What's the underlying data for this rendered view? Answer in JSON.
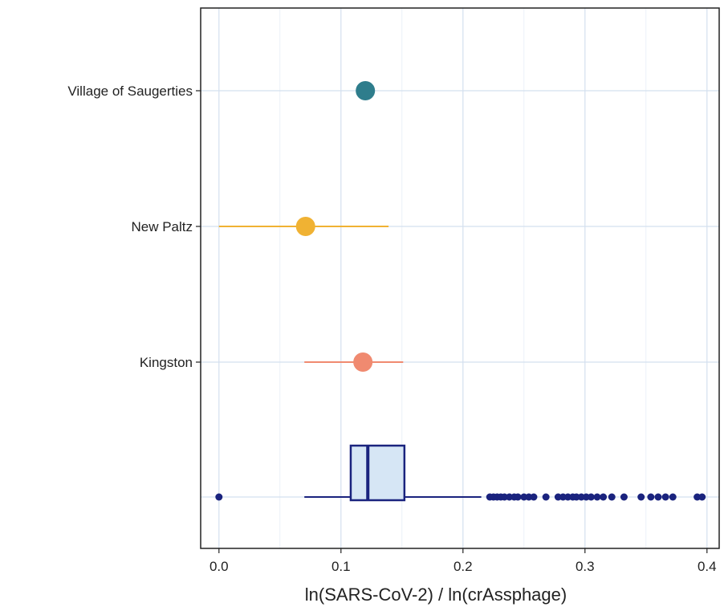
{
  "chart_data": {
    "type": "scatter",
    "title": "",
    "xlabel": "ln(SARS-CoV-2) / ln(crAssphage)",
    "ylabel": "",
    "xlim": [
      -0.015,
      0.41
    ],
    "x_ticks": [
      "0.0",
      "0.1",
      "0.2",
      "0.3",
      "0.4"
    ],
    "x_tick_values": [
      0.0,
      0.1,
      0.2,
      0.3,
      0.4
    ],
    "grid": true,
    "legend": "none",
    "categories": [
      "Village of Saugerties",
      "New Paltz",
      "Kingston"
    ],
    "points": [
      {
        "category": "Village of Saugerties",
        "x": 0.12,
        "low": null,
        "high": null,
        "color": "#2e7d8c"
      },
      {
        "category": "New Paltz",
        "x": 0.071,
        "low": 0.0,
        "high": 0.139,
        "color": "#f0b233"
      },
      {
        "category": "Kingston",
        "x": 0.118,
        "low": 0.07,
        "high": 0.151,
        "color": "#f08a70"
      }
    ],
    "boxplot": {
      "whisker_low": 0.07,
      "q1": 0.108,
      "median": 0.122,
      "q3": 0.152,
      "whisker_high": 0.215,
      "box_fill": "#d6e6f5",
      "color": "#1a237e",
      "outliers": [
        0.0,
        0.222,
        0.225,
        0.228,
        0.231,
        0.234,
        0.238,
        0.242,
        0.245,
        0.25,
        0.254,
        0.258,
        0.268,
        0.278,
        0.282,
        0.286,
        0.29,
        0.293,
        0.297,
        0.301,
        0.305,
        0.31,
        0.315,
        0.322,
        0.332,
        0.346,
        0.354,
        0.36,
        0.366,
        0.372,
        0.392,
        0.396
      ]
    }
  }
}
